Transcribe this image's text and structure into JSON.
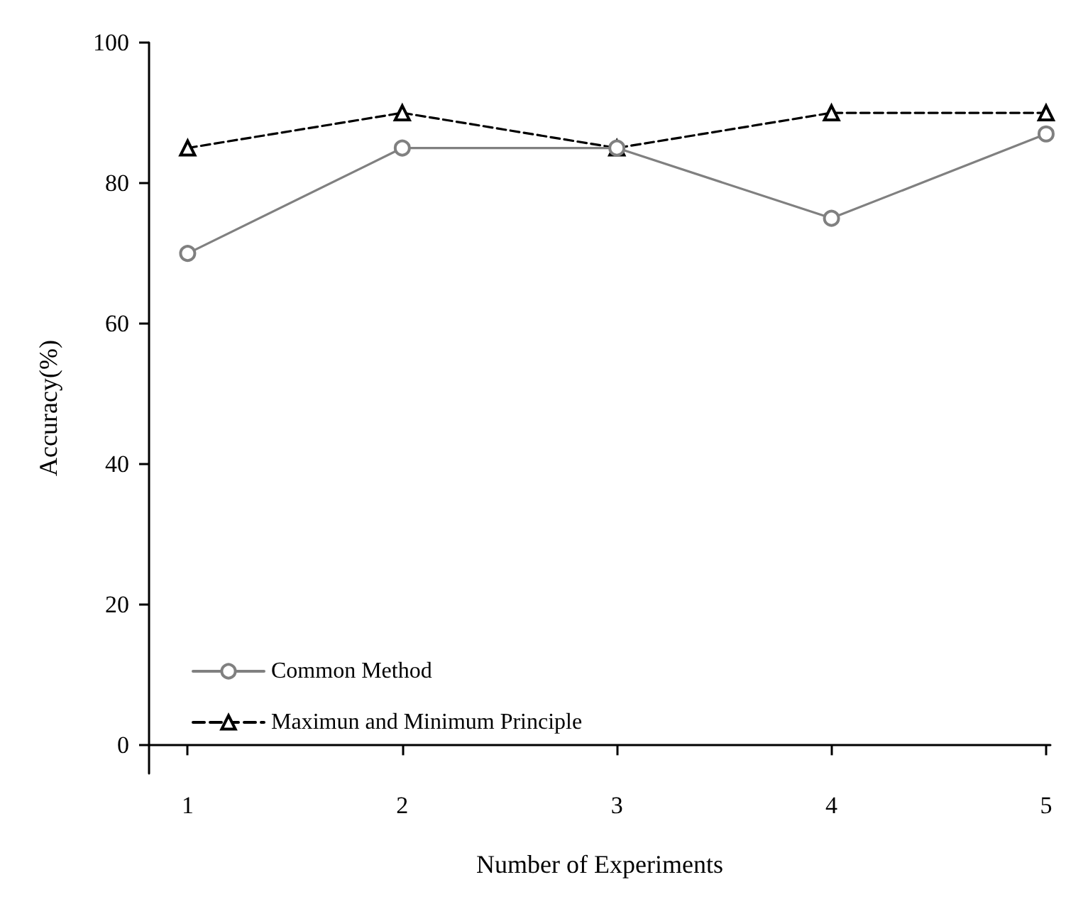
{
  "chart_data": {
    "type": "line",
    "xlabel": "Number of Experiments",
    "ylabel": "Accuracy(%)",
    "x": [
      1,
      2,
      3,
      4,
      5
    ],
    "series": [
      {
        "name": "Common Method",
        "color": "#808080",
        "marker": "circle",
        "line_style": "solid",
        "values": [
          70,
          85,
          85,
          75,
          87
        ]
      },
      {
        "name": "Maximun and Minimum Principle",
        "color": "#000000",
        "marker": "triangle",
        "line_style": "dashed",
        "values": [
          85,
          90,
          85,
          90,
          90
        ]
      }
    ],
    "xlim": [
      0.82,
      5.02
    ],
    "xticks": [
      1,
      2,
      3,
      4,
      5
    ],
    "ylim": [
      -4,
      100
    ],
    "yticks": [
      0,
      20,
      40,
      60,
      80,
      100
    ],
    "grid": false,
    "legend": "bottom left"
  }
}
